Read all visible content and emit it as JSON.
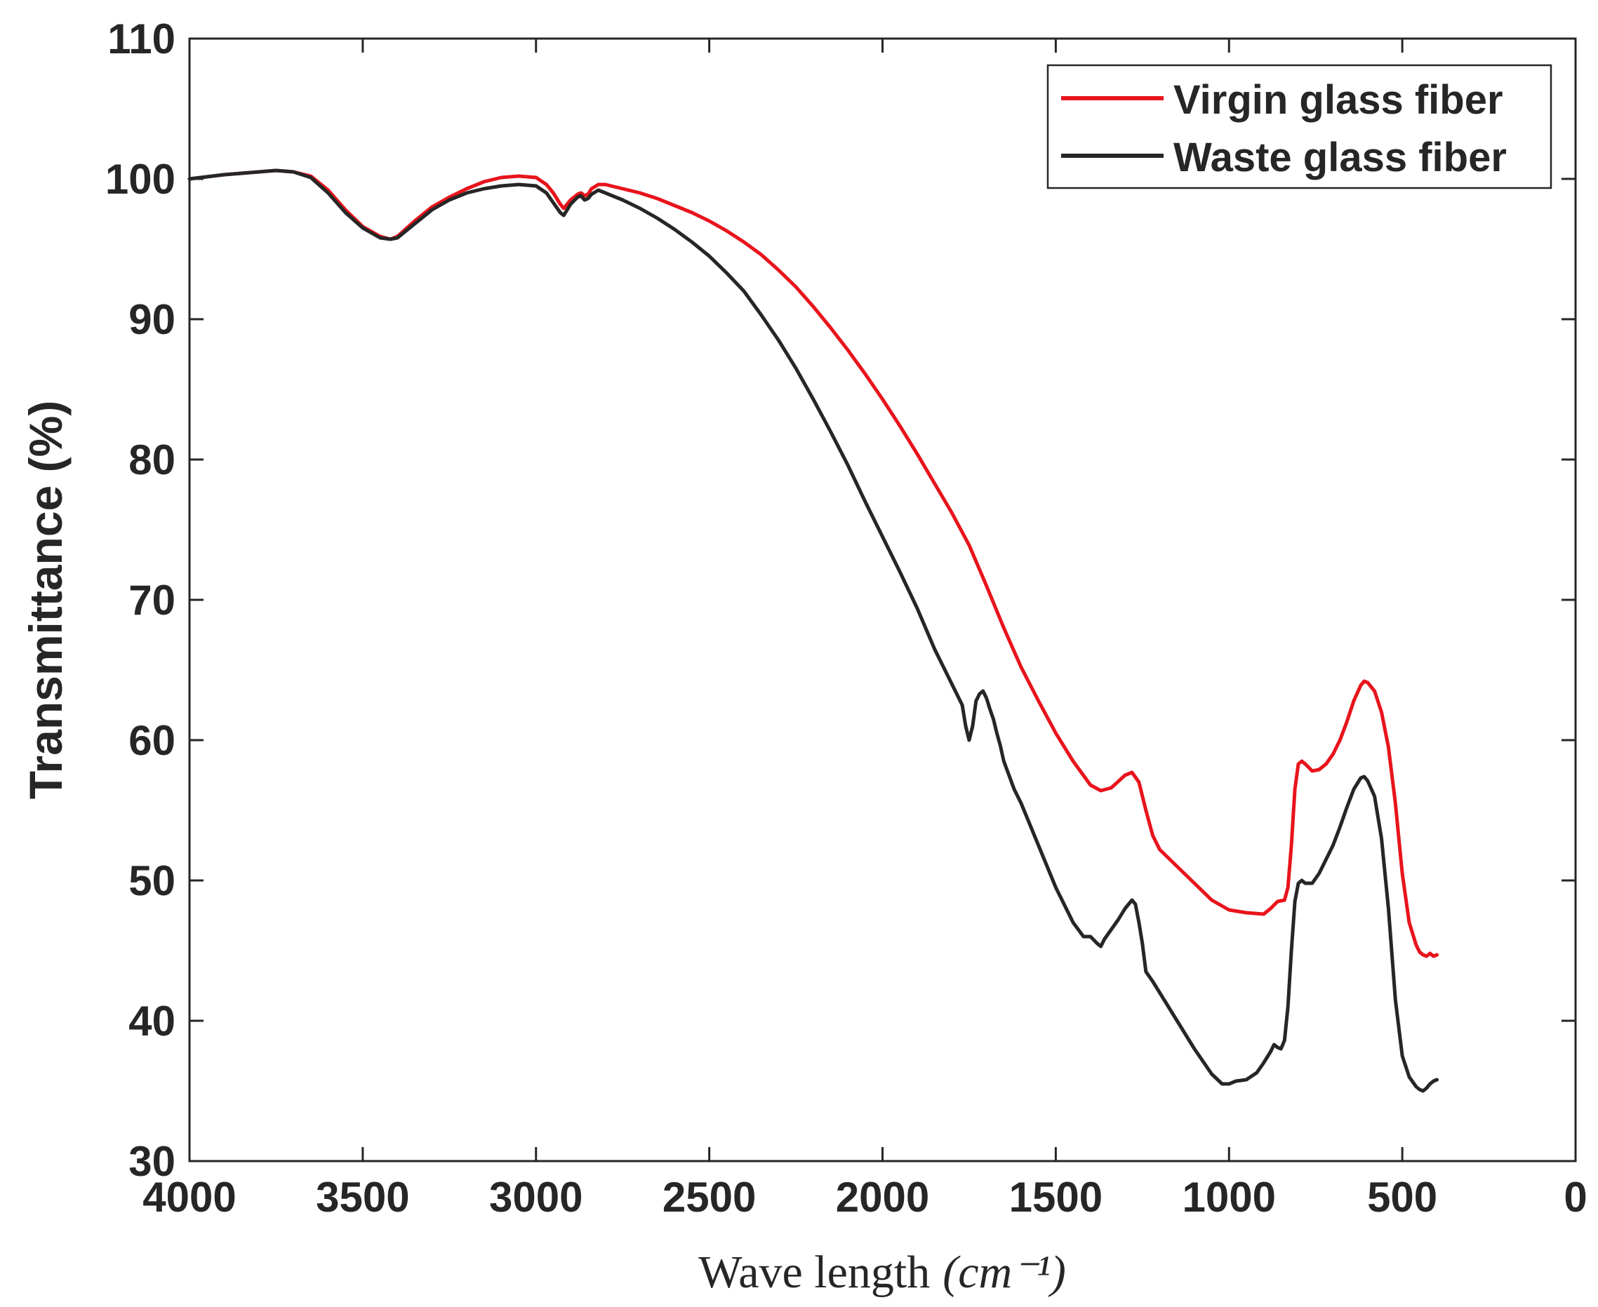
{
  "chart_data": {
    "type": "line",
    "title": "",
    "xlabel": "Wave length",
    "xlabel_unit": "(cm⁻¹)",
    "ylabel": "Transmittance (%)",
    "xlim": [
      4000,
      0
    ],
    "ylim": [
      30,
      110
    ],
    "xticks": [
      4000,
      3500,
      3000,
      2500,
      2000,
      1500,
      1000,
      500,
      0
    ],
    "yticks": [
      30,
      40,
      50,
      60,
      70,
      80,
      90,
      100,
      110
    ],
    "grid": false,
    "legend_position": "top-right",
    "series": [
      {
        "name": "Virgin glass fiber",
        "color": "#e8141c",
        "x": [
          4000,
          3900,
          3800,
          3750,
          3700,
          3650,
          3600,
          3550,
          3500,
          3450,
          3420,
          3400,
          3350,
          3300,
          3250,
          3200,
          3150,
          3100,
          3050,
          3000,
          2970,
          2950,
          2930,
          2920,
          2900,
          2880,
          2870,
          2860,
          2850,
          2840,
          2820,
          2800,
          2750,
          2700,
          2650,
          2600,
          2550,
          2500,
          2450,
          2400,
          2350,
          2300,
          2250,
          2200,
          2150,
          2100,
          2050,
          2000,
          1950,
          1900,
          1850,
          1800,
          1750,
          1700,
          1650,
          1600,
          1550,
          1500,
          1450,
          1400,
          1370,
          1340,
          1300,
          1280,
          1260,
          1240,
          1220,
          1200,
          1150,
          1100,
          1050,
          1000,
          950,
          900,
          880,
          860,
          840,
          830,
          820,
          810,
          800,
          790,
          780,
          760,
          740,
          720,
          700,
          680,
          660,
          640,
          620,
          610,
          600,
          580,
          560,
          540,
          520,
          500,
          480,
          460,
          450,
          440,
          430,
          420,
          410,
          400
        ],
        "y": [
          100.0,
          100.3,
          100.5,
          100.6,
          100.5,
          100.2,
          99.2,
          97.8,
          96.6,
          95.9,
          95.7,
          95.9,
          97.0,
          98.0,
          98.7,
          99.3,
          99.8,
          100.1,
          100.2,
          100.1,
          99.6,
          99.0,
          98.2,
          97.9,
          98.5,
          98.9,
          99.0,
          98.8,
          98.9,
          99.3,
          99.6,
          99.6,
          99.3,
          99.0,
          98.6,
          98.1,
          97.6,
          97.0,
          96.3,
          95.5,
          94.6,
          93.5,
          92.3,
          90.9,
          89.4,
          87.8,
          86.1,
          84.3,
          82.4,
          80.4,
          78.3,
          76.2,
          73.9,
          71.0,
          68.0,
          65.2,
          62.8,
          60.5,
          58.5,
          56.8,
          56.4,
          56.6,
          57.5,
          57.7,
          57.0,
          55.0,
          53.2,
          52.2,
          51.0,
          49.8,
          48.6,
          47.9,
          47.7,
          47.6,
          48.0,
          48.5,
          48.6,
          49.5,
          52.5,
          56.5,
          58.3,
          58.5,
          58.3,
          57.8,
          57.9,
          58.3,
          59.0,
          60.0,
          61.3,
          62.8,
          63.9,
          64.2,
          64.1,
          63.5,
          62.0,
          59.5,
          55.5,
          50.5,
          47.0,
          45.4,
          44.9,
          44.7,
          44.6,
          44.8,
          44.6,
          44.7
        ]
      },
      {
        "name": "Waste glass fiber",
        "color": "#262626",
        "x": [
          4000,
          3900,
          3800,
          3750,
          3700,
          3650,
          3600,
          3550,
          3500,
          3450,
          3420,
          3400,
          3350,
          3300,
          3250,
          3200,
          3150,
          3100,
          3050,
          3000,
          2970,
          2950,
          2930,
          2920,
          2900,
          2880,
          2870,
          2860,
          2850,
          2840,
          2820,
          2800,
          2750,
          2700,
          2650,
          2600,
          2550,
          2500,
          2450,
          2400,
          2350,
          2300,
          2250,
          2200,
          2150,
          2100,
          2050,
          2000,
          1950,
          1900,
          1850,
          1800,
          1770,
          1760,
          1750,
          1740,
          1730,
          1720,
          1710,
          1700,
          1690,
          1680,
          1670,
          1660,
          1650,
          1620,
          1600,
          1580,
          1550,
          1500,
          1450,
          1420,
          1400,
          1380,
          1370,
          1360,
          1340,
          1320,
          1300,
          1280,
          1270,
          1260,
          1250,
          1240,
          1220,
          1200,
          1150,
          1100,
          1050,
          1020,
          1000,
          980,
          950,
          920,
          900,
          880,
          870,
          860,
          850,
          840,
          830,
          820,
          810,
          800,
          790,
          780,
          760,
          740,
          720,
          700,
          680,
          660,
          640,
          620,
          610,
          600,
          580,
          560,
          540,
          520,
          500,
          480,
          460,
          450,
          440,
          430,
          420,
          410,
          400
        ],
        "y": [
          100.0,
          100.3,
          100.5,
          100.6,
          100.5,
          100.1,
          99.0,
          97.6,
          96.5,
          95.8,
          95.7,
          95.8,
          96.8,
          97.8,
          98.5,
          99.0,
          99.3,
          99.5,
          99.6,
          99.5,
          99.0,
          98.3,
          97.6,
          97.4,
          98.2,
          98.7,
          98.8,
          98.5,
          98.6,
          98.9,
          99.2,
          99.0,
          98.5,
          97.9,
          97.2,
          96.4,
          95.5,
          94.5,
          93.3,
          92.0,
          90.3,
          88.5,
          86.5,
          84.3,
          82.0,
          79.6,
          77.0,
          74.5,
          72.0,
          69.4,
          66.5,
          64.0,
          62.5,
          61.0,
          60.0,
          61.0,
          62.8,
          63.3,
          63.5,
          63.0,
          62.2,
          61.5,
          60.5,
          59.6,
          58.5,
          56.5,
          55.5,
          54.3,
          52.5,
          49.5,
          47.0,
          46.0,
          46.0,
          45.5,
          45.3,
          45.8,
          46.5,
          47.2,
          48.0,
          48.6,
          48.3,
          47.0,
          45.5,
          43.5,
          42.8,
          42.0,
          40.0,
          38.0,
          36.2,
          35.5,
          35.5,
          35.7,
          35.8,
          36.3,
          37.0,
          37.8,
          38.3,
          38.1,
          38.0,
          38.6,
          41.0,
          45.0,
          48.5,
          49.8,
          50.0,
          49.8,
          49.8,
          50.5,
          51.5,
          52.5,
          53.8,
          55.2,
          56.5,
          57.3,
          57.4,
          57.1,
          56.0,
          53.0,
          48.0,
          41.5,
          37.5,
          36.0,
          35.3,
          35.1,
          35.0,
          35.2,
          35.5,
          35.7,
          35.8
        ]
      }
    ]
  }
}
